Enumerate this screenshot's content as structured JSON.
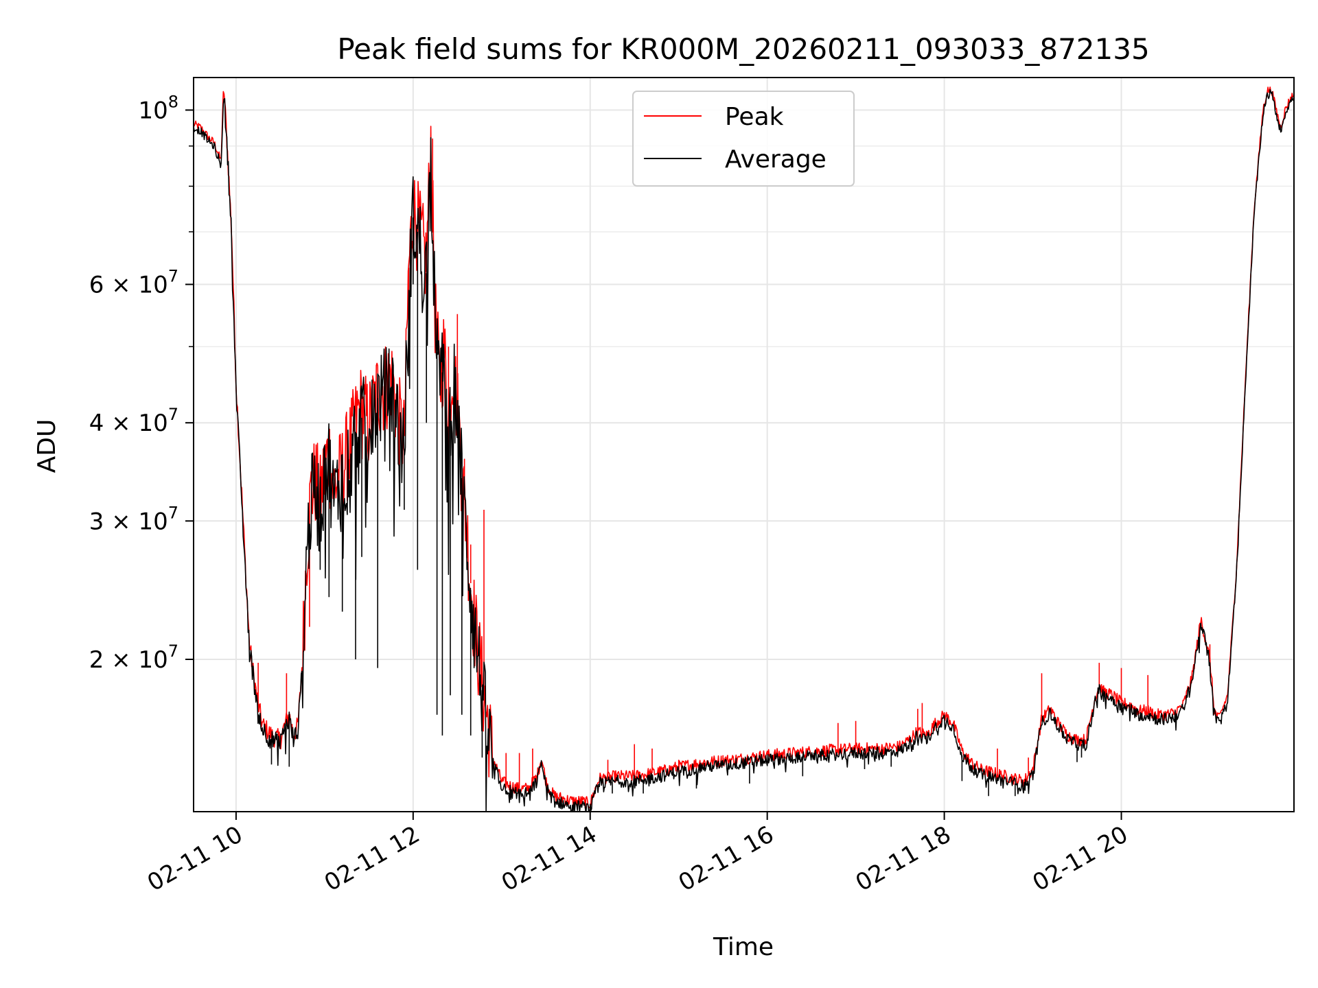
{
  "chart_data": {
    "type": "line",
    "title": "Peak field sums for KR000M_20260211_093033_872135",
    "xlabel": "Time",
    "ylabel": "ADU",
    "yscale": "log",
    "ylim": [
      12800000,
      110000000
    ],
    "xlim_hours": [
      9.52,
      21.95
    ],
    "grid": true,
    "legend_position": "upper center",
    "x_ticks": [
      {
        "hour": 10,
        "label": "02-11 10"
      },
      {
        "hour": 12,
        "label": "02-11 12"
      },
      {
        "hour": 14,
        "label": "02-11 14"
      },
      {
        "hour": 16,
        "label": "02-11 16"
      },
      {
        "hour": 18,
        "label": "02-11 18"
      },
      {
        "hour": 20,
        "label": "02-11 20"
      }
    ],
    "y_ticks": [
      {
        "value": 20000000,
        "mant": "2",
        "exp": "7"
      },
      {
        "value": 30000000,
        "mant": "3",
        "exp": "7"
      },
      {
        "value": 40000000,
        "mant": "4",
        "exp": "7"
      },
      {
        "value": 60000000,
        "mant": "6",
        "exp": "7"
      },
      {
        "value": 100000000,
        "mant": "",
        "exp": "8"
      }
    ],
    "y_minor_ticks": [
      50000000,
      70000000,
      80000000,
      90000000
    ],
    "series": [
      {
        "name": "Peak",
        "color": "#ff0000",
        "x": [
          9.52,
          9.6,
          9.7,
          9.75,
          9.8,
          9.83,
          9.86,
          9.9,
          9.95,
          10.0,
          10.1,
          10.15,
          10.2,
          10.25,
          10.3,
          10.4,
          10.5,
          10.55,
          10.6,
          10.65,
          10.7,
          10.75,
          10.8,
          10.85,
          10.9,
          10.95,
          11.0,
          11.05,
          11.1,
          11.2,
          11.3,
          11.4,
          11.5,
          11.6,
          11.7,
          11.75,
          11.8,
          11.85,
          11.9,
          11.95,
          11.98,
          12.0,
          12.05,
          12.1,
          12.15,
          12.2,
          12.25,
          12.3,
          12.35,
          12.4,
          12.45,
          12.5,
          12.55,
          12.6,
          12.65,
          12.7,
          12.75,
          12.8,
          12.85,
          12.9,
          13.0,
          13.1,
          13.2,
          13.3,
          13.4,
          13.45,
          13.5,
          13.55,
          13.6,
          13.7,
          13.8,
          13.9,
          14.0,
          14.05,
          14.1,
          14.3,
          14.5,
          14.8,
          15.0,
          15.3,
          15.6,
          16.0,
          16.3,
          16.6,
          17.0,
          17.3,
          17.5,
          17.6,
          17.7,
          17.8,
          17.9,
          18.0,
          18.1,
          18.2,
          18.3,
          18.4,
          18.6,
          18.8,
          18.9,
          19.0,
          19.1,
          19.2,
          19.3,
          19.4,
          19.5,
          19.6,
          19.7,
          19.75,
          19.8,
          19.9,
          20.0,
          20.1,
          20.2,
          20.3,
          20.4,
          20.5,
          20.6,
          20.7,
          20.8,
          20.9,
          21.0,
          21.05,
          21.1,
          21.2,
          21.3,
          21.4,
          21.5,
          21.6,
          21.65,
          21.7,
          21.75,
          21.8,
          21.85,
          21.9,
          21.95
        ],
        "values": [
          96000000,
          95000000,
          92000000,
          91000000,
          88000000,
          86000000,
          108000000,
          90000000,
          70000000,
          45000000,
          27000000,
          21000000,
          19000000,
          17500000,
          16500000,
          16000000,
          15800000,
          16500000,
          17000000,
          16000000,
          16500000,
          20000000,
          28000000,
          33000000,
          34000000,
          32000000,
          35000000,
          37000000,
          33000000,
          35000000,
          38000000,
          42000000,
          40000000,
          44000000,
          45000000,
          46000000,
          43000000,
          40000000,
          38000000,
          63000000,
          70000000,
          75000000,
          72000000,
          68000000,
          64000000,
          91000000,
          55000000,
          45000000,
          50000000,
          40000000,
          48000000,
          42000000,
          35000000,
          30000000,
          25000000,
          22000000,
          20000000,
          18000000,
          16500000,
          15000000,
          14000000,
          13800000,
          13700000,
          13700000,
          14200000,
          15000000,
          14000000,
          13600000,
          13400000,
          13300000,
          13200000,
          13200000,
          13100000,
          13600000,
          14100000,
          14200000,
          14200000,
          14400000,
          14600000,
          14800000,
          14900000,
          15100000,
          15200000,
          15300000,
          15400000,
          15400000,
          15500000,
          15800000,
          16200000,
          16000000,
          16600000,
          17000000,
          16600000,
          15300000,
          14800000,
          14500000,
          14300000,
          14100000,
          14000000,
          14500000,
          16800000,
          17300000,
          16500000,
          16000000,
          15800000,
          15800000,
          17800000,
          18500000,
          18200000,
          18000000,
          17600000,
          17500000,
          17200000,
          17200000,
          17000000,
          17000000,
          17100000,
          17500000,
          19000000,
          22500000,
          20000000,
          17200000,
          16800000,
          18000000,
          26000000,
          45000000,
          75000000,
          100000000,
          106000000,
          106000000,
          100000000,
          95000000,
          100000000,
          103000000,
          105000000
        ],
        "spikes": [
          [
            10.25,
            19800000
          ],
          [
            10.57,
            19200000
          ],
          [
            10.83,
            22000000
          ],
          [
            11.1,
            34000000
          ],
          [
            11.65,
            45000000
          ],
          [
            11.95,
            47000000
          ],
          [
            12.22,
            92000000
          ],
          [
            12.4,
            50000000
          ],
          [
            12.5,
            55000000
          ],
          [
            12.58,
            36000000
          ],
          [
            12.65,
            28000000
          ],
          [
            12.75,
            22000000
          ],
          [
            12.8,
            31000000
          ],
          [
            13.05,
            15200000
          ],
          [
            13.2,
            15200000
          ],
          [
            13.35,
            15400000
          ],
          [
            14.2,
            14900000
          ],
          [
            14.5,
            15600000
          ],
          [
            14.7,
            15400000
          ],
          [
            15.0,
            14900000
          ],
          [
            15.5,
            15100000
          ],
          [
            16.1,
            15100000
          ],
          [
            16.8,
            16600000
          ],
          [
            17.0,
            16700000
          ],
          [
            17.7,
            17300000
          ],
          [
            17.75,
            17600000
          ],
          [
            18.6,
            15400000
          ],
          [
            18.95,
            15000000
          ],
          [
            19.1,
            19200000
          ],
          [
            19.75,
            19800000
          ],
          [
            20.0,
            19500000
          ],
          [
            20.3,
            19100000
          ],
          [
            21.0,
            20900000
          ]
        ]
      },
      {
        "name": "Average",
        "color": "#000000",
        "x": [
          9.52,
          9.6,
          9.7,
          9.75,
          9.8,
          9.83,
          9.86,
          9.9,
          9.95,
          10.0,
          10.1,
          10.15,
          10.2,
          10.25,
          10.3,
          10.4,
          10.5,
          10.55,
          10.6,
          10.65,
          10.7,
          10.75,
          10.8,
          10.85,
          10.9,
          10.95,
          11.0,
          11.05,
          11.1,
          11.2,
          11.3,
          11.4,
          11.5,
          11.6,
          11.7,
          11.75,
          11.8,
          11.85,
          11.9,
          11.95,
          11.98,
          12.0,
          12.05,
          12.1,
          12.15,
          12.2,
          12.25,
          12.3,
          12.35,
          12.4,
          12.45,
          12.5,
          12.55,
          12.6,
          12.65,
          12.7,
          12.75,
          12.8,
          12.85,
          12.9,
          13.0,
          13.1,
          13.2,
          13.3,
          13.4,
          13.45,
          13.5,
          13.55,
          13.6,
          13.7,
          13.8,
          13.9,
          14.0,
          14.05,
          14.1,
          14.3,
          14.5,
          14.8,
          15.0,
          15.3,
          15.6,
          16.0,
          16.3,
          16.6,
          17.0,
          17.3,
          17.5,
          17.6,
          17.7,
          17.8,
          17.9,
          18.0,
          18.1,
          18.2,
          18.3,
          18.4,
          18.6,
          18.8,
          18.9,
          19.0,
          19.1,
          19.2,
          19.3,
          19.4,
          19.5,
          19.6,
          19.7,
          19.75,
          19.8,
          19.9,
          20.0,
          20.1,
          20.2,
          20.3,
          20.4,
          20.5,
          20.6,
          20.7,
          20.8,
          20.9,
          21.0,
          21.05,
          21.1,
          21.2,
          21.3,
          21.4,
          21.5,
          21.6,
          21.65,
          21.7,
          21.75,
          21.8,
          21.85,
          21.9,
          21.95
        ],
        "values": [
          95000000,
          94000000,
          91000000,
          90000000,
          87000000,
          85000000,
          106000000,
          89000000,
          69000000,
          44000000,
          26500000,
          20800000,
          18800000,
          17300000,
          16300000,
          15800000,
          15600000,
          16300000,
          16800000,
          15800000,
          16300000,
          19800000,
          27500000,
          32000000,
          33000000,
          31000000,
          34000000,
          36000000,
          32000000,
          34000000,
          37000000,
          41000000,
          39000000,
          43000000,
          44000000,
          45000000,
          42000000,
          39000000,
          37000000,
          61000000,
          68000000,
          73000000,
          70000000,
          66000000,
          62000000,
          88000000,
          53000000,
          44000000,
          48000000,
          39000000,
          46000000,
          41000000,
          34000000,
          29000000,
          24500000,
          21500000,
          19500000,
          17500000,
          16200000,
          14800000,
          13800000,
          13600000,
          13500000,
          13500000,
          14000000,
          14800000,
          13800000,
          13400000,
          13200000,
          13100000,
          13000000,
          13000000,
          12900000,
          13400000,
          13900000,
          14000000,
          14000000,
          14200000,
          14400000,
          14600000,
          14700000,
          14900000,
          15000000,
          15100000,
          15200000,
          15200000,
          15300000,
          15600000,
          16000000,
          15800000,
          16400000,
          16800000,
          16400000,
          15100000,
          14600000,
          14300000,
          14100000,
          13900000,
          13800000,
          14300000,
          16600000,
          17100000,
          16300000,
          15800000,
          15600000,
          15600000,
          17600000,
          18300000,
          18000000,
          17800000,
          17400000,
          17300000,
          17000000,
          17000000,
          16800000,
          16800000,
          16900000,
          17300000,
          18800000,
          22300000,
          19800000,
          17000000,
          16600000,
          17800000,
          25700000,
          44500000,
          74000000,
          99000000,
          105000000,
          105000000,
          99000000,
          94000000,
          99000000,
          102000000,
          104000000
        ],
        "dips": [
          [
            10.4,
            14700000
          ],
          [
            10.6,
            14600000
          ],
          [
            10.95,
            26000000
          ],
          [
            11.05,
            24000000
          ],
          [
            11.2,
            23000000
          ],
          [
            11.35,
            20000000
          ],
          [
            11.42,
            27000000
          ],
          [
            11.6,
            19500000
          ],
          [
            11.9,
            31000000
          ],
          [
            12.0,
            60000000
          ],
          [
            12.05,
            26000000
          ],
          [
            12.15,
            40000000
          ],
          [
            12.27,
            17000000
          ],
          [
            12.33,
            16000000
          ],
          [
            12.42,
            18000000
          ],
          [
            12.55,
            17000000
          ],
          [
            12.65,
            16000000
          ],
          [
            12.78,
            15000000
          ],
          [
            13.6,
            13000000
          ],
          [
            13.95,
            12800000
          ],
          [
            14.25,
            13500000
          ],
          [
            14.6,
            13500000
          ],
          [
            15.2,
            13700000
          ],
          [
            15.8,
            13900000
          ],
          [
            16.4,
            14200000
          ],
          [
            17.1,
            14500000
          ],
          [
            17.4,
            14600000
          ],
          [
            18.2,
            14000000
          ],
          [
            18.5,
            13400000
          ],
          [
            18.8,
            13400000
          ],
          [
            19.5,
            14800000
          ],
          [
            19.55,
            15000000
          ]
        ]
      }
    ]
  },
  "legend": {
    "items": [
      {
        "label": "Peak",
        "color": "#ff0000"
      },
      {
        "label": "Average",
        "color": "#000000"
      }
    ]
  }
}
